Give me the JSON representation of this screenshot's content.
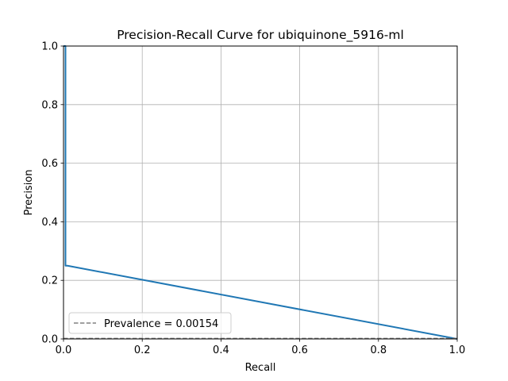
{
  "chart_data": {
    "type": "line",
    "title": "Precision-Recall Curve for ubiquinone_5916-ml",
    "xlabel": "Recall",
    "ylabel": "Precision",
    "xlim": [
      0.0,
      1.0
    ],
    "ylim": [
      0.0,
      1.0
    ],
    "grid": true,
    "x_ticks": [
      "0.0",
      "0.2",
      "0.4",
      "0.6",
      "0.8",
      "1.0"
    ],
    "y_ticks": [
      "0.0",
      "0.2",
      "0.4",
      "0.6",
      "0.8",
      "1.0"
    ],
    "series": [
      {
        "color": "#1f77b4",
        "x": [
          0.0,
          0.005,
          0.005,
          0.01,
          1.0
        ],
        "y": [
          1.0,
          1.0,
          0.25,
          0.25,
          0.0
        ]
      },
      {
        "name": "Prevalence = 0.00154",
        "style": "dashed",
        "color": "#808080",
        "x": [
          0.0,
          1.0
        ],
        "y": [
          0.00154,
          0.00154
        ]
      }
    ],
    "legend": {
      "placement": "lower-left",
      "entries": [
        "Prevalence = 0.00154"
      ]
    }
  }
}
